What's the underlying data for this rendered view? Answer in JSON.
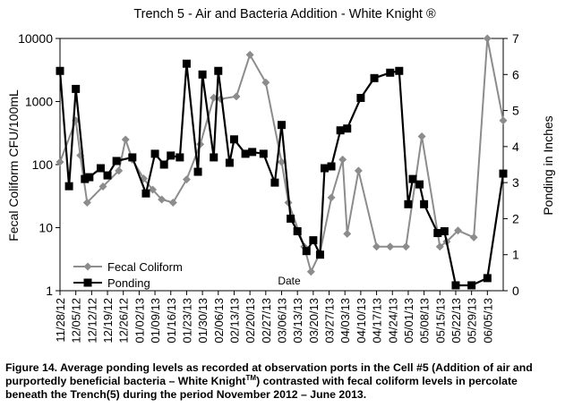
{
  "chart_data": {
    "type": "line",
    "title": "Trench 5 - Air and Bacteria Addition -  White Knight ®",
    "xlabel": "Date",
    "ylabel": "Fecal Coliform CFU/100mL",
    "y2label": "Ponding in Inches",
    "y_scale": "log",
    "ylim": [
      1,
      10000
    ],
    "y_ticks": [
      "1",
      "10",
      "100",
      "1000",
      "10000"
    ],
    "y2lim": [
      0,
      7
    ],
    "y2_ticks": [
      "0",
      "1",
      "2",
      "3",
      "4",
      "5",
      "6",
      "7"
    ],
    "x_start": "2012-11-28",
    "x_end": "2013-06-12",
    "x_tick_labels": [
      "11/28/12",
      "12/05/12",
      "12/12/12",
      "12/19/12",
      "12/26/12",
      "01/02/13",
      "01/09/13",
      "01/16/13",
      "01/23/13",
      "01/30/13",
      "02/06/13",
      "02/13/13",
      "02/20/13",
      "02/27/13",
      "03/06/13",
      "03/13/13",
      "03/20/13",
      "03/27/13",
      "04/03/13",
      "04/10/13",
      "04/17/13",
      "04/24/13",
      "05/01/13",
      "05/08/13",
      "05/15/13",
      "05/22/13",
      "05/29/13",
      "06/05/13"
    ],
    "grid": false,
    "legend_position": "bottom-left",
    "series": [
      {
        "name": "Fecal Coliform",
        "axis": "left",
        "color": "#8c8c8c",
        "marker": "diamond",
        "points": [
          [
            "2012-11-28",
            110
          ],
          [
            "2012-12-05",
            500
          ],
          [
            "2012-12-07",
            140
          ],
          [
            "2012-12-10",
            25
          ],
          [
            "2012-12-17",
            45
          ],
          [
            "2012-12-24",
            80
          ],
          [
            "2012-12-27",
            250
          ],
          [
            "2012-12-30",
            120
          ],
          [
            "2013-01-04",
            60
          ],
          [
            "2013-01-08",
            40
          ],
          [
            "2013-01-12",
            28
          ],
          [
            "2013-01-17",
            25
          ],
          [
            "2013-01-23",
            58
          ],
          [
            "2013-01-29",
            210
          ],
          [
            "2013-02-04",
            1150
          ],
          [
            "2013-02-07",
            1100
          ],
          [
            "2013-02-14",
            1200
          ],
          [
            "2013-02-20",
            5500
          ],
          [
            "2013-02-27",
            2000
          ],
          [
            "2013-03-06",
            110
          ],
          [
            "2013-03-09",
            25
          ],
          [
            "2013-03-16",
            5
          ],
          [
            "2013-03-19",
            2
          ],
          [
            "2013-03-23",
            4
          ],
          [
            "2013-03-28",
            30
          ],
          [
            "2013-04-02",
            120
          ],
          [
            "2013-04-04",
            8
          ],
          [
            "2013-04-09",
            80
          ],
          [
            "2013-04-17",
            5
          ],
          [
            "2013-04-23",
            5
          ],
          [
            "2013-04-30",
            5
          ],
          [
            "2013-05-07",
            280
          ],
          [
            "2013-05-15",
            5
          ],
          [
            "2013-05-18",
            6
          ],
          [
            "2013-05-23",
            9
          ],
          [
            "2013-05-30",
            7
          ],
          [
            "2013-06-05",
            10000
          ],
          [
            "2013-06-12",
            500
          ]
        ]
      },
      {
        "name": "Ponding",
        "axis": "right",
        "color": "#000000",
        "marker": "square",
        "points": [
          [
            "2012-11-28",
            6.1
          ],
          [
            "2012-12-02",
            2.9
          ],
          [
            "2012-12-05",
            5.6
          ],
          [
            "2012-12-09",
            3.1
          ],
          [
            "2012-12-11",
            3.15
          ],
          [
            "2012-12-16",
            3.4
          ],
          [
            "2012-12-19",
            3.2
          ],
          [
            "2012-12-23",
            3.6
          ],
          [
            "2012-12-30",
            3.7
          ],
          [
            "2013-01-05",
            2.7
          ],
          [
            "2013-01-09",
            3.8
          ],
          [
            "2013-01-13",
            3.5
          ],
          [
            "2013-01-16",
            3.75
          ],
          [
            "2013-01-20",
            3.7
          ],
          [
            "2013-01-23",
            6.3
          ],
          [
            "2013-01-28",
            3.3
          ],
          [
            "2013-01-30",
            6
          ],
          [
            "2013-02-04",
            3.7
          ],
          [
            "2013-02-06",
            6.1
          ],
          [
            "2013-02-11",
            3.55
          ],
          [
            "2013-02-13",
            4.2
          ],
          [
            "2013-02-18",
            3.8
          ],
          [
            "2013-02-21",
            3.85
          ],
          [
            "2013-02-26",
            3.8
          ],
          [
            "2013-03-03",
            3
          ],
          [
            "2013-03-06",
            4.6
          ],
          [
            "2013-03-10",
            2
          ],
          [
            "2013-03-13",
            1.65
          ],
          [
            "2013-03-17",
            1.1
          ],
          [
            "2013-03-20",
            1.4
          ],
          [
            "2013-03-23",
            1
          ],
          [
            "2013-03-25",
            3.4
          ],
          [
            "2013-03-28",
            3.45
          ],
          [
            "2013-04-01",
            4.45
          ],
          [
            "2013-04-04",
            4.5
          ],
          [
            "2013-04-10",
            5.35
          ],
          [
            "2013-04-16",
            5.9
          ],
          [
            "2013-04-23",
            6.05
          ],
          [
            "2013-04-27",
            6.1
          ],
          [
            "2013-05-01",
            2.4
          ],
          [
            "2013-05-03",
            3.1
          ],
          [
            "2013-05-06",
            2.95
          ],
          [
            "2013-05-08",
            2.4
          ],
          [
            "2013-05-14",
            1.6
          ],
          [
            "2013-05-17",
            1.65
          ],
          [
            "2013-05-22",
            0.15
          ],
          [
            "2013-05-29",
            0.15
          ],
          [
            "2013-06-05",
            0.35
          ],
          [
            "2013-06-12",
            3.25
          ]
        ]
      }
    ]
  },
  "caption": {
    "figure_label": "Figure 14.",
    "text_part1": "Average ponding levels as recorded at observation ports in the Cell #5 (Addition of air and purportedly beneficial bacteria – White Knight",
    "superscript": "TM",
    "text_part2": ") contrasted with fecal coliform levels in percolate beneath the Trench(5) during the period November 2012 – June 2013."
  }
}
